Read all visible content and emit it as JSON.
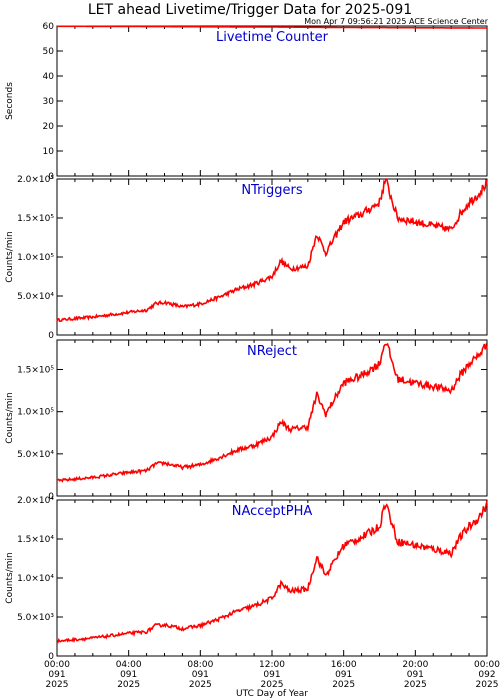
{
  "title": "LET ahead Livetime/Trigger Data for 2025-091",
  "subtitle": "Mon Apr  7 09:56:21 2025 ACE Science Center",
  "xlabel": "UTC Day of Year",
  "colors": {
    "line": "#ff0000",
    "label": "#0000cc",
    "axis": "#000000"
  },
  "x_ticks": [
    {
      "time": "00:00",
      "doy": "091",
      "year": "2025"
    },
    {
      "time": "04:00",
      "doy": "091",
      "year": "2025"
    },
    {
      "time": "08:00",
      "doy": "091",
      "year": "2025"
    },
    {
      "time": "12:00",
      "doy": "091",
      "year": "2025"
    },
    {
      "time": "16:00",
      "doy": "091",
      "year": "2025"
    },
    {
      "time": "20:00",
      "doy": "091",
      "year": "2025"
    },
    {
      "time": "00:00",
      "doy": "092",
      "year": "2025"
    }
  ],
  "chart_data": [
    {
      "type": "line",
      "title": "Livetime Counter",
      "xlabel": "UTC Day of Year",
      "ylabel": "Seconds",
      "xlim": [
        "2025-091 00:00",
        "2025-092 00:00"
      ],
      "ylim": [
        0,
        60
      ],
      "yticks": [
        {
          "value": 0,
          "label": "0"
        },
        {
          "value": 10,
          "label": "10"
        },
        {
          "value": 20,
          "label": "20"
        },
        {
          "value": 30,
          "label": "30"
        },
        {
          "value": 40,
          "label": "40"
        },
        {
          "value": 50,
          "label": "50"
        },
        {
          "value": 60,
          "label": "60"
        }
      ],
      "series": [
        {
          "x": [
            "2025-091 00:00",
            "2025-091 04:00",
            "2025-091 08:00",
            "2025-091 12:00",
            "2025-091 16:00",
            "2025-091 20:00",
            "2025-092 00:00"
          ],
          "y": [
            59.9,
            59.8,
            59.7,
            59.6,
            59.4,
            59.3,
            59.2
          ]
        }
      ]
    },
    {
      "type": "line",
      "title": "NTriggers",
      "xlabel": "UTC Day of Year",
      "ylabel": "Counts/min",
      "xlim": [
        "2025-091 00:00",
        "2025-092 00:00"
      ],
      "ylim": [
        0,
        200000
      ],
      "yticks": [
        {
          "value": 0,
          "label": "0"
        },
        {
          "value": 50000,
          "label": "5.0×10⁴"
        },
        {
          "value": 100000,
          "label": "1.0×10⁵"
        },
        {
          "value": 150000,
          "label": "1.5×10⁵"
        },
        {
          "value": 200000,
          "label": "2.0×10⁵"
        }
      ],
      "series": [
        {
          "x": [
            "2025-091 00:00",
            "2025-091 01:00",
            "2025-091 02:00",
            "2025-091 03:00",
            "2025-091 04:00",
            "2025-091 05:00",
            "2025-091 05:30",
            "2025-091 06:00",
            "2025-091 07:00",
            "2025-091 08:00",
            "2025-091 09:00",
            "2025-091 10:00",
            "2025-091 11:00",
            "2025-091 12:00",
            "2025-091 12:30",
            "2025-091 13:00",
            "2025-091 14:00",
            "2025-091 14:30",
            "2025-091 15:00",
            "2025-091 16:00",
            "2025-091 17:00",
            "2025-091 18:00",
            "2025-091 18:20",
            "2025-091 19:00",
            "2025-091 20:00",
            "2025-091 21:00",
            "2025-091 22:00",
            "2025-091 22:30",
            "2025-091 23:00",
            "2025-091 23:30",
            "2025-092 00:00"
          ],
          "y": [
            19000,
            21000,
            23000,
            26000,
            29000,
            32000,
            40000,
            42000,
            36000,
            40000,
            48000,
            58000,
            65000,
            75000,
            95000,
            85000,
            88000,
            130000,
            105000,
            145000,
            155000,
            170000,
            200000,
            150000,
            145000,
            140000,
            135000,
            155000,
            170000,
            180000,
            195000
          ]
        }
      ]
    },
    {
      "type": "line",
      "title": "NReject",
      "xlabel": "UTC Day of Year",
      "ylabel": "Counts/min",
      "xlim": [
        "2025-091 00:00",
        "2025-092 00:00"
      ],
      "ylim": [
        0,
        185000
      ],
      "yticks": [
        {
          "value": 0,
          "label": "0"
        },
        {
          "value": 50000,
          "label": "5.0×10⁴"
        },
        {
          "value": 100000,
          "label": "1.0×10⁵"
        },
        {
          "value": 150000,
          "label": "1.5×10⁵"
        }
      ],
      "series": [
        {
          "x": [
            "2025-091 00:00",
            "2025-091 01:00",
            "2025-091 02:00",
            "2025-091 03:00",
            "2025-091 04:00",
            "2025-091 05:00",
            "2025-091 05:30",
            "2025-091 06:00",
            "2025-091 07:00",
            "2025-091 08:00",
            "2025-091 09:00",
            "2025-091 10:00",
            "2025-091 11:00",
            "2025-091 12:00",
            "2025-091 12:30",
            "2025-091 13:00",
            "2025-091 14:00",
            "2025-091 14:30",
            "2025-091 15:00",
            "2025-091 16:00",
            "2025-091 17:00",
            "2025-091 18:00",
            "2025-091 18:20",
            "2025-091 19:00",
            "2025-091 20:00",
            "2025-091 21:00",
            "2025-091 22:00",
            "2025-091 22:30",
            "2025-091 23:00",
            "2025-091 23:30",
            "2025-092 00:00"
          ],
          "y": [
            18000,
            20000,
            22000,
            25000,
            28000,
            30000,
            38000,
            39000,
            34000,
            37000,
            45000,
            54000,
            60000,
            70000,
            88000,
            79000,
            82000,
            120000,
            97000,
            134000,
            143000,
            157000,
            185000,
            139000,
            134000,
            130000,
            125000,
            143000,
            157000,
            166000,
            180000
          ]
        }
      ]
    },
    {
      "type": "line",
      "title": "NAcceptPHA",
      "xlabel": "UTC Day of Year",
      "ylabel": "Counts/min",
      "xlim": [
        "2025-091 00:00",
        "2025-092 00:00"
      ],
      "ylim": [
        0,
        20000
      ],
      "yticks": [
        {
          "value": 0,
          "label": "0"
        },
        {
          "value": 5000,
          "label": "5.0×10³"
        },
        {
          "value": 10000,
          "label": "1.0×10⁴"
        },
        {
          "value": 15000,
          "label": "1.5×10⁴"
        },
        {
          "value": 20000,
          "label": "2.0×10⁴"
        }
      ],
      "series": [
        {
          "x": [
            "2025-091 00:00",
            "2025-091 01:00",
            "2025-091 02:00",
            "2025-091 03:00",
            "2025-091 04:00",
            "2025-091 05:00",
            "2025-091 05:30",
            "2025-091 06:00",
            "2025-091 07:00",
            "2025-091 08:00",
            "2025-091 09:00",
            "2025-091 10:00",
            "2025-091 11:00",
            "2025-091 12:00",
            "2025-091 12:30",
            "2025-091 13:00",
            "2025-091 14:00",
            "2025-091 14:30",
            "2025-091 15:00",
            "2025-091 16:00",
            "2025-091 17:00",
            "2025-091 18:00",
            "2025-091 18:20",
            "2025-091 19:00",
            "2025-091 20:00",
            "2025-091 21:00",
            "2025-091 22:00",
            "2025-091 22:30",
            "2025-091 23:00",
            "2025-091 23:30",
            "2025-092 00:00"
          ],
          "y": [
            1900,
            2100,
            2300,
            2600,
            2900,
            3100,
            3900,
            4000,
            3500,
            3900,
            4700,
            5700,
            6400,
            7400,
            9300,
            8300,
            8600,
            12700,
            10300,
            14200,
            15200,
            16600,
            19800,
            14700,
            14200,
            13700,
            13200,
            15200,
            16600,
            17600,
            19400
          ]
        }
      ]
    }
  ]
}
